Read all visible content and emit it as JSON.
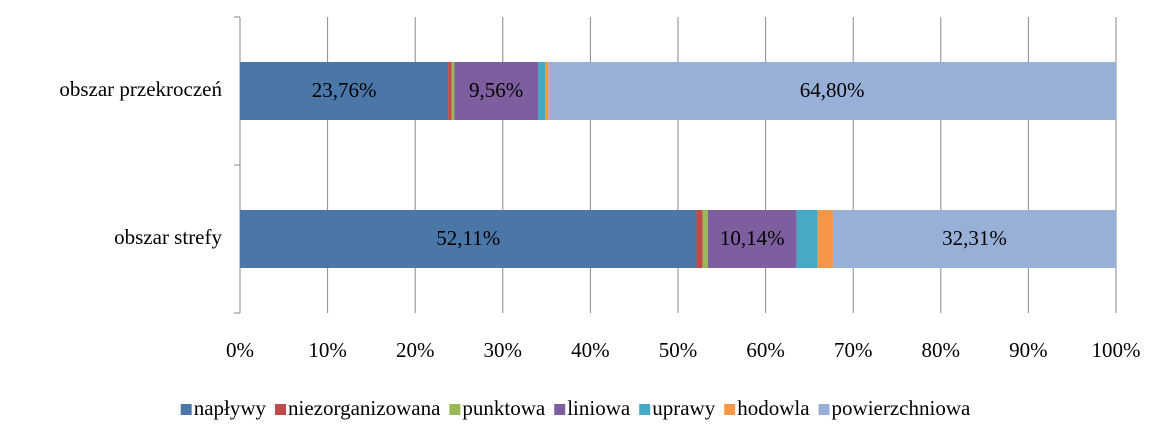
{
  "chart_data": {
    "type": "stacked-bar-horizontal",
    "categories": [
      "obszar przekroczeń",
      "obszar strefy"
    ],
    "series": [
      {
        "name": "napływy",
        "color": "#4a76a8",
        "values": [
          23.76,
          52.11
        ],
        "value_labels": [
          "23,76%",
          "52,11%"
        ]
      },
      {
        "name": "niezorganizowana",
        "color": "#be4b48",
        "values": [
          0.4,
          0.7
        ]
      },
      {
        "name": "punktowa",
        "color": "#98b954",
        "values": [
          0.3,
          0.6
        ]
      },
      {
        "name": "liniowa",
        "color": "#7d5f9f",
        "values": [
          9.56,
          10.14
        ],
        "value_labels": [
          "9,56%",
          "10,14%"
        ]
      },
      {
        "name": "uprawy",
        "color": "#46aac5",
        "values": [
          0.8,
          2.4
        ]
      },
      {
        "name": "hodowla",
        "color": "#f79646",
        "values": [
          0.38,
          1.74
        ]
      },
      {
        "name": "powierzchniowa",
        "color": "#98b0d8",
        "values": [
          64.8,
          32.31
        ],
        "value_labels": [
          "64,80%",
          "32,31%"
        ]
      }
    ],
    "xlim": [
      0,
      100
    ],
    "xticks": [
      {
        "value": 0,
        "label": "0%"
      },
      {
        "value": 10,
        "label": "10%"
      },
      {
        "value": 20,
        "label": "20%"
      },
      {
        "value": 30,
        "label": "30%"
      },
      {
        "value": 40,
        "label": "40%"
      },
      {
        "value": 50,
        "label": "50%"
      },
      {
        "value": 60,
        "label": "60%"
      },
      {
        "value": 70,
        "label": "70%"
      },
      {
        "value": 80,
        "label": "80%"
      },
      {
        "value": 90,
        "label": "90%"
      },
      {
        "value": 100,
        "label": "100%"
      }
    ],
    "grid": true,
    "legend": "bottom"
  }
}
